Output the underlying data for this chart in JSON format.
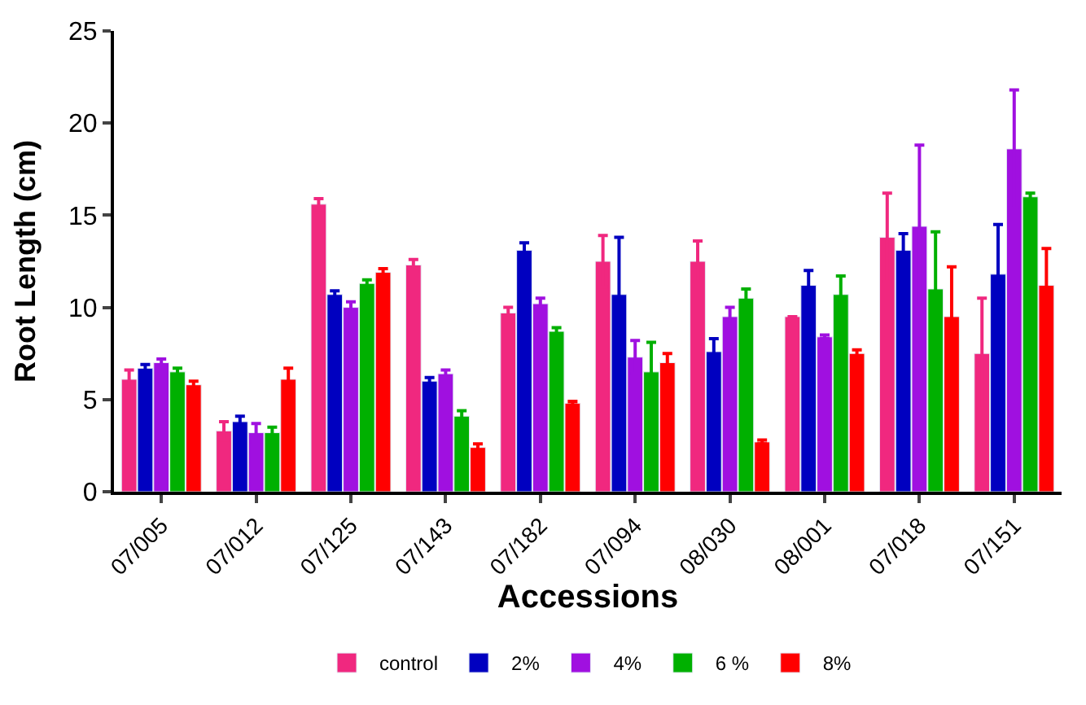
{
  "chart_data": {
    "type": "bar",
    "xlabel": "Accessions",
    "ylabel": "Root Length (cm)",
    "categories": [
      "07/005",
      "07/012",
      "07/125",
      "07/143",
      "07/182",
      "07/094",
      "08/030",
      "08/001",
      "07/018",
      "07/151"
    ],
    "series": [
      {
        "name": "control",
        "color": "#f0287f",
        "values": [
          6.1,
          3.3,
          15.6,
          12.3,
          9.7,
          12.5,
          12.5,
          9.5,
          13.8,
          7.5
        ],
        "errors": [
          0.5,
          0.5,
          0.3,
          0.3,
          0.3,
          1.4,
          1.1,
          null,
          2.4,
          3.0
        ]
      },
      {
        "name": "2%",
        "color": "#0000c0",
        "values": [
          6.7,
          3.8,
          10.7,
          6.0,
          13.1,
          10.7,
          7.6,
          11.2,
          13.1,
          11.8
        ],
        "errors": [
          0.2,
          0.3,
          0.2,
          0.2,
          0.4,
          3.1,
          0.7,
          0.8,
          0.9,
          2.7
        ]
      },
      {
        "name": "4%",
        "color": "#a010e0",
        "values": [
          7.0,
          3.2,
          10.0,
          6.4,
          10.2,
          7.3,
          9.5,
          8.4,
          14.4,
          18.6
        ],
        "errors": [
          0.2,
          0.5,
          0.3,
          0.2,
          0.3,
          0.9,
          0.5,
          0.1,
          4.4,
          3.2
        ]
      },
      {
        "name": "6 %",
        "color": "#00b000",
        "values": [
          6.5,
          3.2,
          11.3,
          4.1,
          8.7,
          6.5,
          10.5,
          10.7,
          11.0,
          16.0
        ],
        "errors": [
          0.2,
          0.3,
          0.2,
          0.3,
          0.2,
          1.6,
          0.5,
          1.0,
          3.1,
          0.2
        ]
      },
      {
        "name": "8%",
        "color": "#ff0000",
        "values": [
          5.8,
          6.1,
          11.9,
          2.4,
          4.8,
          7.0,
          2.7,
          7.5,
          9.5,
          11.2
        ],
        "errors": [
          0.2,
          0.6,
          0.2,
          0.2,
          0.1,
          0.5,
          0.1,
          0.2,
          2.7,
          2.0
        ]
      }
    ],
    "ylim": [
      0,
      25
    ],
    "yticks": [
      0,
      5,
      10,
      15,
      20,
      25
    ],
    "legend": "bottom"
  }
}
